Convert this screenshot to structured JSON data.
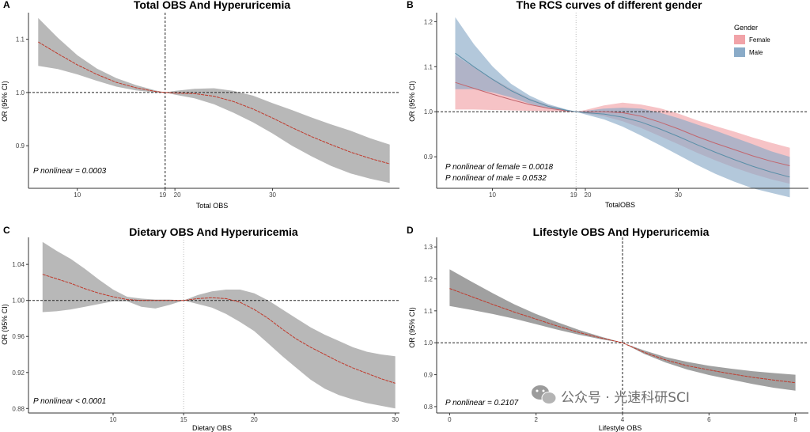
{
  "watermark": {
    "text": "公众号 · 光速科研SCI",
    "icon": "wechat-icon"
  },
  "chart_data": [
    {
      "type": "line",
      "panel": "A",
      "title": "Total OBS And Hyperuricemia",
      "xlabel": "Total OBS",
      "ylabel": "OR (95% CI)",
      "xlim": [
        5,
        43
      ],
      "ylim": [
        0.82,
        1.15
      ],
      "xticks": [
        10,
        19,
        20,
        30
      ],
      "yticks": [
        0.9,
        1.0,
        1.1
      ],
      "ytick_labels": [
        "0.9",
        "1.0",
        "1.1"
      ],
      "ref_x": 19,
      "ref_y": 1.0,
      "annotations": [
        "P nonlinear = 0.0003"
      ],
      "series": [
        {
          "color": "#c0392b",
          "band_color": "#a0a0a0",
          "x": [
            6,
            8,
            10,
            12,
            14,
            16,
            18,
            19,
            20,
            22,
            24,
            26,
            28,
            30,
            32,
            34,
            36,
            38,
            40,
            42
          ],
          "y": [
            1.095,
            1.073,
            1.052,
            1.034,
            1.019,
            1.009,
            1.002,
            1.0,
            0.999,
            0.998,
            0.993,
            0.983,
            0.969,
            0.952,
            0.934,
            0.917,
            0.902,
            0.888,
            0.876,
            0.866
          ],
          "lower": [
            1.05,
            1.044,
            1.034,
            1.022,
            1.011,
            1.004,
            1.0,
            1.0,
            0.996,
            0.989,
            0.978,
            0.962,
            0.944,
            0.923,
            0.9,
            0.88,
            0.862,
            0.848,
            0.838,
            0.83
          ],
          "upper": [
            1.14,
            1.103,
            1.07,
            1.045,
            1.027,
            1.014,
            1.004,
            1.0,
            1.003,
            1.007,
            1.008,
            1.003,
            0.994,
            0.98,
            0.967,
            0.953,
            0.94,
            0.928,
            0.914,
            0.902
          ]
        }
      ]
    },
    {
      "type": "line",
      "panel": "B",
      "title": "The RCS curves of different gender",
      "xlabel": "TotalOBS",
      "ylabel": "OR (95% CI)",
      "xlim": [
        4,
        44
      ],
      "ylim": [
        0.83,
        1.22
      ],
      "xticks": [
        10,
        19,
        20,
        30
      ],
      "yticks": [
        0.9,
        1.0,
        1.1,
        1.2
      ],
      "ytick_labels": [
        "0.9",
        "1.0",
        "1.1",
        "1.2"
      ],
      "ref_x": 19,
      "ref_y": 1.0,
      "legend_title": "Gender",
      "legend_position": "top-right",
      "annotations": [
        "P nonlinear of female = 0.0018",
        "P nonlinear of male = 0.0532"
      ],
      "series": [
        {
          "name": "Female",
          "color": "#c2666e",
          "band_color": "#f1a3a8",
          "x": [
            6,
            8,
            10,
            12,
            14,
            16,
            18,
            19,
            20,
            22,
            24,
            26,
            28,
            30,
            32,
            34,
            36,
            38,
            40,
            42
          ],
          "y": [
            1.065,
            1.052,
            1.039,
            1.027,
            1.016,
            1.008,
            1.002,
            1.0,
            0.999,
            1.0,
            0.998,
            0.99,
            0.977,
            0.962,
            0.945,
            0.93,
            0.916,
            0.902,
            0.89,
            0.88
          ],
          "lower": [
            1.005,
            1.005,
            1.004,
            1.003,
            1.002,
            1.001,
            1.0,
            1.0,
            0.996,
            0.99,
            0.979,
            0.964,
            0.946,
            0.928,
            0.909,
            0.892,
            0.876,
            0.862,
            0.85,
            0.84
          ],
          "upper": [
            1.125,
            1.099,
            1.074,
            1.051,
            1.03,
            1.015,
            1.004,
            1.0,
            1.004,
            1.014,
            1.02,
            1.016,
            1.008,
            0.996,
            0.981,
            0.968,
            0.956,
            0.943,
            0.931,
            0.92
          ]
        },
        {
          "name": "Male",
          "color": "#5a8fa8",
          "band_color": "#8aabc8",
          "x": [
            6,
            8,
            10,
            12,
            14,
            16,
            18,
            19,
            20,
            22,
            24,
            26,
            28,
            30,
            32,
            34,
            36,
            38,
            40,
            42
          ],
          "y": [
            1.13,
            1.1,
            1.072,
            1.047,
            1.027,
            1.012,
            1.003,
            1.0,
            0.998,
            0.995,
            0.988,
            0.977,
            0.962,
            0.945,
            0.927,
            0.91,
            0.894,
            0.879,
            0.866,
            0.855
          ],
          "lower": [
            1.05,
            1.05,
            1.043,
            1.032,
            1.018,
            1.007,
            1.001,
            1.0,
            0.994,
            0.983,
            0.967,
            0.947,
            0.926,
            0.904,
            0.882,
            0.862,
            0.845,
            0.83,
            0.82,
            0.81
          ],
          "upper": [
            1.21,
            1.15,
            1.101,
            1.062,
            1.036,
            1.017,
            1.005,
            1.0,
            1.002,
            1.007,
            1.009,
            1.007,
            0.998,
            0.986,
            0.972,
            0.958,
            0.943,
            0.928,
            0.912,
            0.9
          ]
        }
      ]
    },
    {
      "type": "line",
      "panel": "C",
      "title": "Dietary OBS And Hyperuricemia",
      "xlabel": "Dietary OBS",
      "ylabel": "OR (95% CI)",
      "xlim": [
        4,
        30.3
      ],
      "ylim": [
        0.875,
        1.07
      ],
      "xticks": [
        10,
        15,
        20,
        30
      ],
      "yticks": [
        0.88,
        0.92,
        0.96,
        1.0,
        1.04
      ],
      "ytick_labels": [
        "0.88",
        "0.92",
        "0.96",
        "1.00",
        "1.04"
      ],
      "ref_x": 15,
      "ref_y": 1.0,
      "annotations": [
        "P nonlinear < 0.0001"
      ],
      "series": [
        {
          "color": "#c0392b",
          "band_color": "#a0a0a0",
          "x": [
            5,
            6,
            7,
            8,
            9,
            10,
            11,
            12,
            13,
            14,
            15,
            16,
            17,
            18,
            19,
            20,
            21,
            22,
            23,
            24,
            25,
            26,
            27,
            28,
            29,
            30
          ],
          "y": [
            1.029,
            1.024,
            1.019,
            1.013,
            1.008,
            1.004,
            1.001,
            1.0,
            1.0,
            1.0,
            1.0,
            1.002,
            1.003,
            1.002,
            0.998,
            0.99,
            0.98,
            0.968,
            0.957,
            0.948,
            0.94,
            0.932,
            0.925,
            0.919,
            0.913,
            0.908
          ],
          "lower": [
            0.987,
            0.988,
            0.99,
            0.993,
            0.996,
            0.999,
            0.999,
            0.993,
            0.991,
            0.995,
            1.0,
            0.996,
            0.992,
            0.985,
            0.976,
            0.966,
            0.952,
            0.938,
            0.925,
            0.912,
            0.902,
            0.895,
            0.89,
            0.886,
            0.883,
            0.88
          ],
          "upper": [
            1.065,
            1.055,
            1.046,
            1.035,
            1.023,
            1.012,
            1.004,
            1.002,
            1.001,
            1.001,
            1.0,
            1.006,
            1.01,
            1.012,
            1.012,
            1.008,
            1.0,
            0.99,
            0.98,
            0.97,
            0.962,
            0.955,
            0.948,
            0.943,
            0.94,
            0.938
          ]
        }
      ]
    },
    {
      "type": "line",
      "panel": "D",
      "title": "Lifestyle OBS And Hyperuricemia",
      "xlabel": "Lifestyle OBS",
      "ylabel": "OR (95% CI)",
      "xlim": [
        -0.3,
        8.3
      ],
      "ylim": [
        0.78,
        1.33
      ],
      "xticks": [
        0,
        2,
        4,
        6,
        8
      ],
      "yticks": [
        0.8,
        0.9,
        1.0,
        1.1,
        1.2,
        1.3
      ],
      "ytick_labels": [
        "0.8",
        "0.9",
        "1.0",
        "1.1",
        "1.2",
        "1.3"
      ],
      "ref_x": 4,
      "ref_y": 1.0,
      "annotations": [
        "P nonlinear = 0.2107"
      ],
      "series": [
        {
          "color": "#c0392b",
          "band_color": "#808080",
          "x": [
            0,
            0.5,
            1,
            1.5,
            2,
            2.5,
            3,
            3.5,
            4,
            4.5,
            5,
            5.5,
            6,
            6.5,
            7,
            7.5,
            8
          ],
          "y": [
            1.17,
            1.145,
            1.12,
            1.096,
            1.074,
            1.052,
            1.032,
            1.015,
            1.0,
            0.97,
            0.946,
            0.928,
            0.915,
            0.903,
            0.892,
            0.883,
            0.875
          ],
          "lower": [
            1.115,
            1.103,
            1.09,
            1.075,
            1.058,
            1.041,
            1.025,
            1.011,
            1.0,
            0.965,
            0.938,
            0.916,
            0.899,
            0.885,
            0.871,
            0.859,
            0.85
          ],
          "upper": [
            1.23,
            1.192,
            1.155,
            1.12,
            1.09,
            1.064,
            1.04,
            1.019,
            1.0,
            0.976,
            0.955,
            0.94,
            0.928,
            0.919,
            0.911,
            0.905,
            0.9
          ]
        }
      ]
    }
  ]
}
